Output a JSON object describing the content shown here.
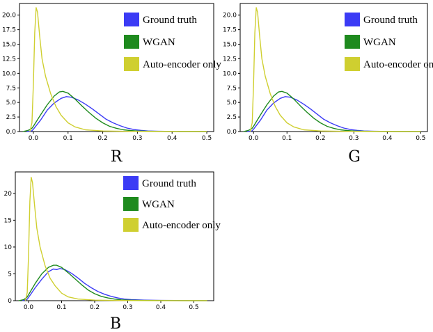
{
  "chart_data": [
    {
      "type": "line",
      "caption": "R",
      "xlim": [
        -0.04,
        0.52
      ],
      "ylim": [
        0,
        22
      ],
      "xticks": [
        0.0,
        0.1,
        0.2,
        0.3,
        0.4,
        0.5
      ],
      "xtick_labels": [
        "0.0",
        "0.1",
        "0.2",
        "0.3",
        "0.4",
        "0.5"
      ],
      "yticks": [
        0,
        2.5,
        5,
        7.5,
        10,
        12.5,
        15,
        17.5,
        20
      ],
      "ytick_labels": [
        "0.0",
        "2.5",
        "5.0",
        "7.5",
        "10.0",
        "12.5",
        "15.0",
        "17.5",
        "20.0"
      ],
      "grid": false,
      "legend_position": "top-right",
      "series": [
        {
          "name": "Ground truth",
          "color": "#3b3bf5",
          "x": [
            -0.02,
            -0.005,
            0.0,
            0.02,
            0.04,
            0.06,
            0.08,
            0.095,
            0.11,
            0.13,
            0.15,
            0.17,
            0.19,
            0.21,
            0.23,
            0.25,
            0.27,
            0.29,
            0.31,
            0.33,
            0.36,
            0.4,
            0.45,
            0.5
          ],
          "y": [
            0,
            0.1,
            0.4,
            1.9,
            3.7,
            4.9,
            5.7,
            6.0,
            5.9,
            5.4,
            4.7,
            3.9,
            3.0,
            2.1,
            1.5,
            1.0,
            0.6,
            0.35,
            0.2,
            0.1,
            0.05,
            0.02,
            0.01,
            0
          ]
        },
        {
          "name": "WGAN",
          "color": "#1e8a1e",
          "x": [
            -0.03,
            -0.015,
            -0.005,
            0.0,
            0.02,
            0.04,
            0.06,
            0.075,
            0.085,
            0.1,
            0.12,
            0.14,
            0.16,
            0.18,
            0.2,
            0.22,
            0.24,
            0.26,
            0.28,
            0.3,
            0.33,
            0.37,
            0.42,
            0.5
          ],
          "y": [
            0,
            0.2,
            0.5,
            0.9,
            2.8,
            4.6,
            6.1,
            6.8,
            6.9,
            6.6,
            5.6,
            4.4,
            3.3,
            2.3,
            1.5,
            0.9,
            0.55,
            0.3,
            0.17,
            0.1,
            0.05,
            0.02,
            0,
            0
          ]
        },
        {
          "name": "Auto-encoder only",
          "color": "#cfcf30",
          "x": [
            -0.01,
            -0.004,
            0.0,
            0.004,
            0.008,
            0.012,
            0.018,
            0.025,
            0.035,
            0.05,
            0.065,
            0.08,
            0.1,
            0.12,
            0.15,
            0.2,
            0.25,
            0.3,
            0.4,
            0.5
          ],
          "y": [
            0,
            1.5,
            8.0,
            17.0,
            21.3,
            20.5,
            16.5,
            12.5,
            9.5,
            6.5,
            4.3,
            2.8,
            1.5,
            0.8,
            0.3,
            0.1,
            0.05,
            0.02,
            0,
            0
          ]
        }
      ]
    },
    {
      "type": "line",
      "caption": "G",
      "xlim": [
        -0.04,
        0.52
      ],
      "ylim": [
        0,
        22
      ],
      "xticks": [
        0.0,
        0.1,
        0.2,
        0.3,
        0.4,
        0.5
      ],
      "xtick_labels": [
        "0.0",
        "0.1",
        "0.2",
        "0.3",
        "0.4",
        "0.5"
      ],
      "yticks": [
        0,
        2.5,
        5,
        7.5,
        10,
        12.5,
        15,
        17.5,
        20
      ],
      "ytick_labels": [
        "0.0",
        "2.5",
        "5.0",
        "7.5",
        "10.0",
        "12.5",
        "15.0",
        "17.5",
        "20.0"
      ],
      "grid": false,
      "legend_position": "top-right",
      "series": [
        {
          "name": "Ground truth",
          "color": "#3b3bf5",
          "x": [
            -0.02,
            -0.005,
            0.0,
            0.02,
            0.04,
            0.06,
            0.08,
            0.095,
            0.11,
            0.13,
            0.15,
            0.17,
            0.19,
            0.21,
            0.23,
            0.25,
            0.27,
            0.29,
            0.31,
            0.33,
            0.36,
            0.4,
            0.45,
            0.5
          ],
          "y": [
            0,
            0.1,
            0.4,
            1.9,
            3.7,
            4.9,
            5.7,
            6.0,
            5.9,
            5.4,
            4.7,
            3.9,
            3.0,
            2.1,
            1.5,
            1.0,
            0.6,
            0.35,
            0.2,
            0.1,
            0.05,
            0.02,
            0.01,
            0
          ]
        },
        {
          "name": "WGAN",
          "color": "#1e8a1e",
          "x": [
            -0.03,
            -0.015,
            -0.005,
            0.0,
            0.02,
            0.04,
            0.06,
            0.075,
            0.085,
            0.1,
            0.12,
            0.14,
            0.16,
            0.18,
            0.2,
            0.22,
            0.24,
            0.26,
            0.28,
            0.3,
            0.33,
            0.37,
            0.42,
            0.5
          ],
          "y": [
            0,
            0.2,
            0.5,
            0.9,
            2.8,
            4.6,
            6.1,
            6.8,
            6.9,
            6.6,
            5.6,
            4.4,
            3.3,
            2.3,
            1.5,
            0.9,
            0.55,
            0.3,
            0.17,
            0.1,
            0.05,
            0.02,
            0,
            0
          ]
        },
        {
          "name": "Auto-encoder only",
          "color": "#cfcf30",
          "x": [
            -0.01,
            -0.004,
            0.0,
            0.004,
            0.008,
            0.012,
            0.018,
            0.025,
            0.035,
            0.05,
            0.065,
            0.08,
            0.1,
            0.12,
            0.15,
            0.2,
            0.25,
            0.3,
            0.4,
            0.5
          ],
          "y": [
            0,
            1.5,
            8.0,
            17.0,
            21.3,
            20.5,
            16.5,
            12.5,
            9.5,
            6.5,
            4.3,
            2.8,
            1.5,
            0.8,
            0.3,
            0.1,
            0.05,
            0.02,
            0,
            0
          ]
        }
      ]
    },
    {
      "type": "line",
      "caption": "B",
      "xlim": [
        -0.04,
        0.56
      ],
      "ylim": [
        0,
        24
      ],
      "xticks": [
        0.0,
        0.1,
        0.2,
        0.3,
        0.4,
        0.5
      ],
      "xtick_labels": [
        "0.0",
        "0.1",
        "0.2",
        "0.3",
        "0.4",
        "0.5"
      ],
      "yticks": [
        0,
        5,
        10,
        15,
        20
      ],
      "ytick_labels": [
        "0",
        "5",
        "10",
        "15",
        "20"
      ],
      "grid": false,
      "legend_position": "top-right",
      "series": [
        {
          "name": "Ground truth",
          "color": "#3b3bf5",
          "x": [
            -0.02,
            -0.005,
            0.0,
            0.02,
            0.04,
            0.06,
            0.075,
            0.085,
            0.095,
            0.11,
            0.13,
            0.15,
            0.17,
            0.19,
            0.21,
            0.23,
            0.25,
            0.27,
            0.29,
            0.31,
            0.35,
            0.4,
            0.47,
            0.54
          ],
          "y": [
            0,
            0.2,
            0.6,
            2.4,
            4.0,
            5.4,
            5.9,
            5.8,
            6.0,
            5.8,
            5.1,
            4.2,
            3.2,
            2.4,
            1.7,
            1.2,
            0.8,
            0.5,
            0.3,
            0.2,
            0.1,
            0.05,
            0.02,
            0
          ]
        },
        {
          "name": "WGAN",
          "color": "#1e8a1e",
          "x": [
            -0.03,
            -0.015,
            -0.005,
            0.0,
            0.02,
            0.04,
            0.06,
            0.075,
            0.085,
            0.1,
            0.12,
            0.14,
            0.16,
            0.18,
            0.2,
            0.22,
            0.24,
            0.26,
            0.28,
            0.3,
            0.34,
            0.4,
            0.47,
            0.54
          ],
          "y": [
            0,
            0.2,
            0.6,
            1.1,
            3.2,
            5.0,
            6.2,
            6.6,
            6.6,
            6.2,
            5.2,
            4.1,
            3.0,
            2.0,
            1.3,
            0.8,
            0.5,
            0.3,
            0.15,
            0.1,
            0.05,
            0.02,
            0,
            0
          ]
        },
        {
          "name": "Auto-encoder only",
          "color": "#cfcf30",
          "x": [
            -0.01,
            -0.004,
            0.0,
            0.004,
            0.008,
            0.012,
            0.018,
            0.025,
            0.035,
            0.05,
            0.065,
            0.08,
            0.1,
            0.12,
            0.15,
            0.2,
            0.25,
            0.3,
            0.4,
            0.54
          ],
          "y": [
            0,
            1.5,
            8.5,
            18.5,
            23.0,
            22.0,
            18.0,
            13.5,
            10.0,
            6.5,
            4.2,
            2.8,
            1.4,
            0.7,
            0.3,
            0.1,
            0.05,
            0.02,
            0,
            0
          ]
        }
      ]
    }
  ]
}
